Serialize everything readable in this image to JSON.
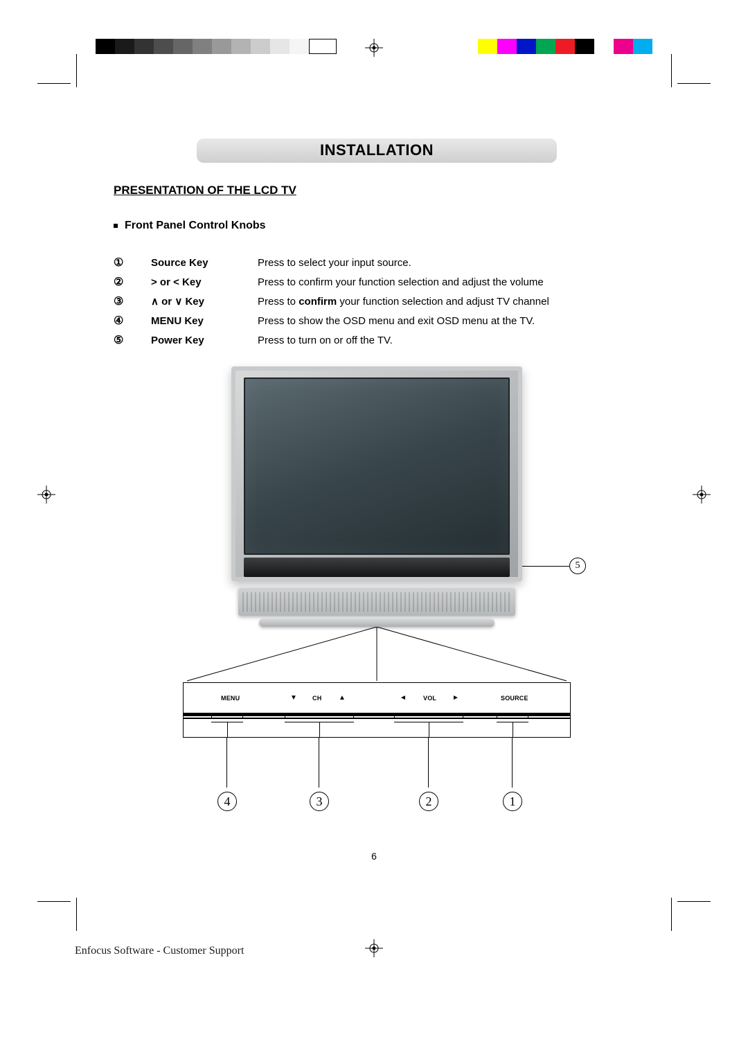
{
  "print_bars": {
    "gray_levels": [
      "#000000",
      "#1a1a1a",
      "#333333",
      "#4d4d4d",
      "#666666",
      "#808080",
      "#999999",
      "#b3b3b3",
      "#cccccc",
      "#e6e6e6",
      "#f5f5f5"
    ],
    "color_swatches": [
      "#ffff00",
      "#ff00ff",
      "#0016c8",
      "#00a651",
      "#ed1c24",
      "#000000",
      "#ffffff",
      "#ec008c",
      "#00aeef"
    ]
  },
  "header": {
    "title": "INSTALLATION"
  },
  "subheading": "PRESENTATION OF THE LCD TV",
  "bullet": "Front Panel Control Knobs",
  "keys": [
    {
      "num": "①",
      "name": "Source Key",
      "desc": "Press to select your input source."
    },
    {
      "num": "②",
      "name": "> or < Key",
      "desc": "Press to confirm your function selection and adjust the volume"
    },
    {
      "num": "③",
      "name": "∧ or ∨ Key",
      "desc_pre": "Press to ",
      "desc_bold": "confirm",
      "desc_post": " your function selection and adjust TV channel"
    },
    {
      "num": "④",
      "name": "MENU Key",
      "desc": "Press to show the OSD menu and exit OSD menu at the TV."
    },
    {
      "num": "⑤",
      "name": "Power Key",
      "desc": "Press to turn on or off the TV."
    }
  ],
  "panel_labels": {
    "menu": "MENU",
    "ch": "CH",
    "vol": "VOL",
    "source": "SOURCE",
    "down": "▼",
    "up": "▲",
    "left": "◄",
    "right": "►"
  },
  "callouts": {
    "c5": "5",
    "c4": "4",
    "c3": "3",
    "c2": "2",
    "c1": "1"
  },
  "page_number": "6",
  "footer": "Enfocus Software - Customer Support"
}
